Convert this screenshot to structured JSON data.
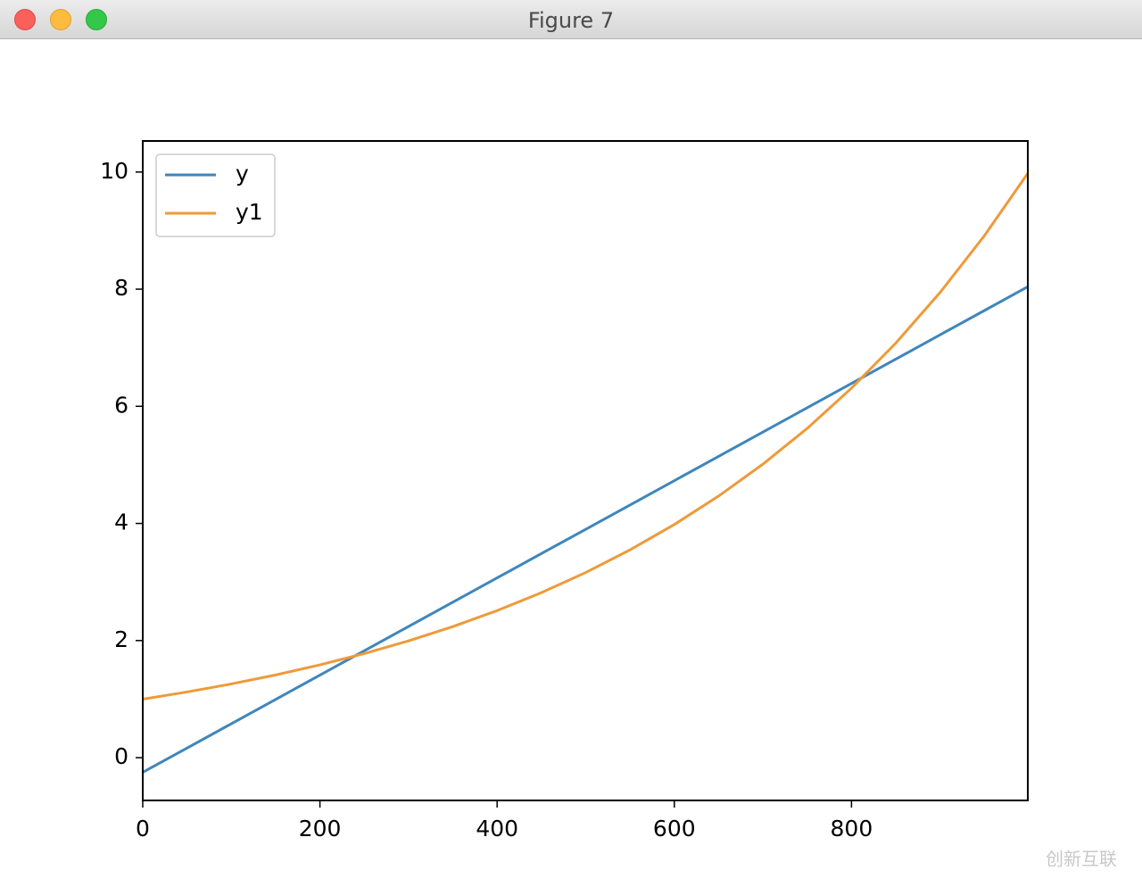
{
  "window_title": "Figure 7",
  "watermark": "创新互联",
  "chart_data": {
    "type": "line",
    "x": [
      0,
      50,
      100,
      150,
      200,
      250,
      300,
      350,
      400,
      450,
      500,
      550,
      600,
      650,
      700,
      750,
      800,
      850,
      900,
      950,
      999
    ],
    "series": [
      {
        "name": "y",
        "color": "#3f86bc",
        "values": [
          -0.25,
          0.165,
          0.58,
          0.995,
          1.41,
          1.825,
          2.24,
          2.655,
          3.07,
          3.485,
          3.9,
          4.315,
          4.73,
          5.145,
          5.56,
          5.975,
          6.39,
          6.805,
          7.22,
          7.635,
          8.042
        ]
      },
      {
        "name": "y1",
        "color": "#ee9a3a",
        "values": [
          1,
          1.122,
          1.259,
          1.413,
          1.585,
          1.778,
          1.995,
          2.239,
          2.512,
          2.818,
          3.162,
          3.548,
          3.981,
          4.467,
          5.012,
          5.623,
          6.31,
          7.079,
          7.943,
          8.913,
          9.977
        ]
      }
    ],
    "xlim": [
      0,
      999
    ],
    "ylim": [
      -0.73,
      10.53
    ],
    "xticks": [
      0,
      200,
      400,
      600,
      800
    ],
    "yticks": [
      0,
      2,
      4,
      6,
      8,
      10
    ],
    "legend": "upper left"
  }
}
